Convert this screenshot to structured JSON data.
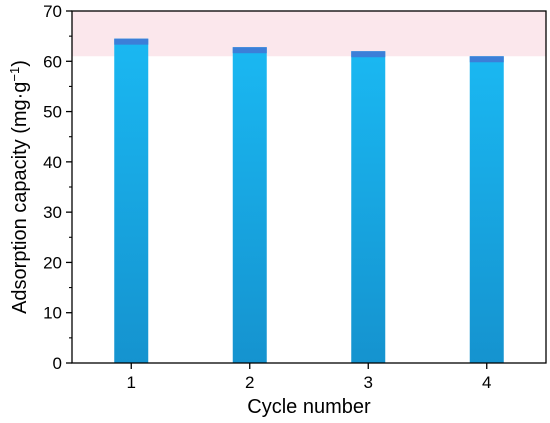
{
  "chart_data": {
    "type": "bar",
    "categories": [
      "1",
      "2",
      "3",
      "4"
    ],
    "values": [
      64.5,
      62.8,
      62.0,
      61.0
    ],
    "xlabel": "Cycle number",
    "ylabel_main": "Adsorption capacity (mg·g",
    "ylabel_sup": "−1",
    "ylabel_close": ")",
    "ylim": [
      0,
      70
    ],
    "yticks": [
      "0",
      "10",
      "20",
      "30",
      "40",
      "50",
      "60",
      "70"
    ],
    "highlight_band": [
      61,
      70
    ],
    "grid": false,
    "legend": "none",
    "colors": {
      "bar_top": "#1ab8f2",
      "bar_bottom": "#1593cf",
      "bar_cap": "#3c7fd8",
      "band": "#fbe7ec",
      "axis": "#000000"
    }
  }
}
